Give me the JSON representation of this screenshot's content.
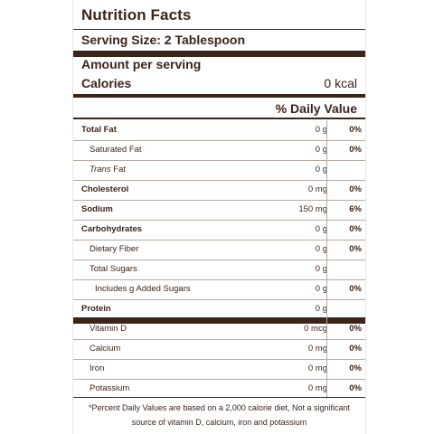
{
  "title": "Nutrition Facts",
  "serving_size": "Serving Size: 2 Tablespoon",
  "amount_per_serving": "Amount per serving",
  "calories": {
    "label": "Calories",
    "value": "0 kcal"
  },
  "daily_value_header": "% Daily Value",
  "nutrients": [
    {
      "name": "Total Fat",
      "amount": "0 g",
      "percent": "0%",
      "bold": true,
      "level": 0
    },
    {
      "name": "Saturated Fat",
      "amount": "0 g",
      "percent": "0%",
      "bold": false,
      "level": 1
    },
    {
      "name_italic": "Trans",
      "name": " Fat",
      "amount": "0 g",
      "percent": "",
      "bold": false,
      "level": 1
    },
    {
      "name": "Cholesterol",
      "amount": "0 mg",
      "percent": "0%",
      "bold": true,
      "level": 0
    },
    {
      "name": "Sodium",
      "amount": "150 mg",
      "percent": "6%",
      "bold": true,
      "level": 0
    },
    {
      "name": "Carbohydrates",
      "amount": "0 g",
      "percent": "0%",
      "bold": true,
      "level": 0
    },
    {
      "name": "Dietary Fiber",
      "amount": "0 g",
      "percent": "0%",
      "bold": false,
      "level": 1
    },
    {
      "name": "Total Sugars",
      "amount": "0 g",
      "percent": "",
      "bold": false,
      "level": 1
    },
    {
      "name": "Includes g Added Sugars",
      "amount": "0 g",
      "percent": "0%",
      "bold": false,
      "level": 2
    },
    {
      "name": "Protein",
      "amount": "0 g",
      "percent": "",
      "bold": true,
      "level": 0
    },
    {
      "name": "Vitamin D",
      "amount": "0 mcg",
      "percent": "0%",
      "bold": false,
      "level": 1
    },
    {
      "name": "Calcium",
      "amount": "0 mg",
      "percent": "0%",
      "bold": false,
      "level": 1
    },
    {
      "name": "Iron",
      "amount": "0 mg",
      "percent": "0%",
      "bold": false,
      "level": 1
    },
    {
      "name": "Potassium",
      "amount": "0 mg",
      "percent": "0%",
      "bold": false,
      "level": 1
    }
  ],
  "footnote": "*Percent Daily Values are based on a 2,000 calorie diet, Not a significant source of vitamin D, calcium, iron and potassium"
}
